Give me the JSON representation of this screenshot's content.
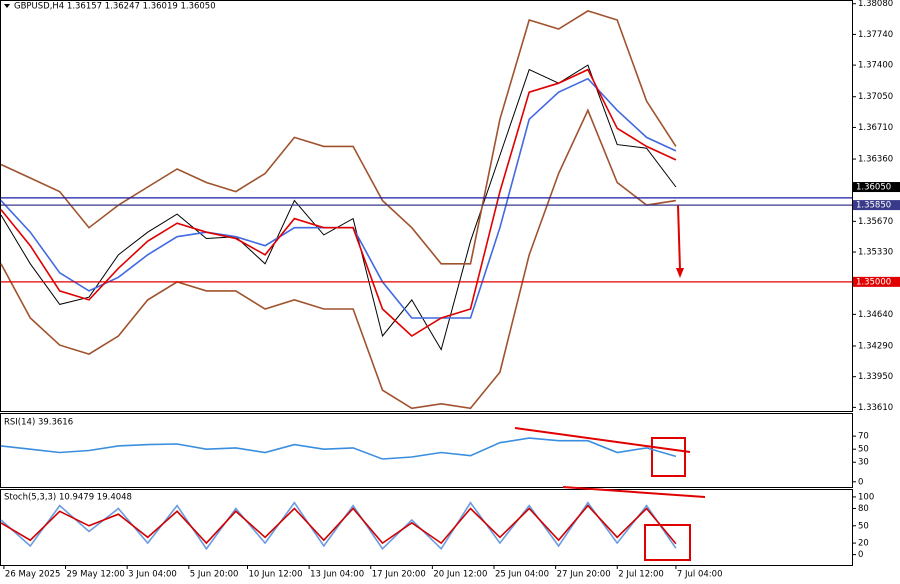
{
  "chart_data": [
    {
      "type": "line",
      "title": "GBPUSD,H4  1.36157 1.36247 1.36019 1.36050",
      "x": [
        0,
        1,
        2,
        3,
        4,
        5,
        6,
        7,
        8,
        9,
        10,
        11,
        12,
        13,
        14,
        15,
        16,
        17,
        18,
        19,
        20,
        21,
        22,
        23
      ],
      "xlim": [
        0,
        29
      ],
      "ylim": [
        1.3357,
        1.3811
      ],
      "yticks": [
        {
          "value": 1.3808,
          "label": "1.38080"
        },
        {
          "value": 1.3774,
          "label": "1.37740"
        },
        {
          "value": 1.374,
          "label": "1.37400"
        },
        {
          "value": 1.3705,
          "label": "1.37050"
        },
        {
          "value": 1.3671,
          "label": "1.36710"
        },
        {
          "value": 1.3636,
          "label": "1.36360"
        },
        {
          "value": 1.3567,
          "label": "1.35670"
        },
        {
          "value": 1.3533,
          "label": "1.35330"
        },
        {
          "value": 1.3464,
          "label": "1.34640"
        },
        {
          "value": 1.3429,
          "label": "1.34290"
        },
        {
          "value": 1.3395,
          "label": "1.33950"
        },
        {
          "value": 1.3361,
          "label": "1.33610"
        }
      ],
      "series": [
        {
          "color": "#000000",
          "values": [
            1.3574,
            1.352,
            1.3475,
            1.3483,
            1.353,
            1.3555,
            1.3575,
            1.3548,
            1.355,
            1.352,
            1.359,
            1.3552,
            1.357,
            1.344,
            1.348,
            1.3425,
            1.3545,
            1.364,
            1.3735,
            1.372,
            1.374,
            1.3652,
            1.3648,
            1.3605
          ]
        },
        {
          "color": "#a0522d",
          "values": [
            1.363,
            1.3615,
            1.36,
            1.356,
            1.3585,
            1.3605,
            1.3625,
            1.361,
            1.36,
            1.362,
            1.366,
            1.365,
            1.365,
            1.359,
            1.356,
            1.352,
            1.352,
            1.368,
            1.379,
            1.378,
            1.38,
            1.379,
            1.37,
            1.365
          ]
        },
        {
          "color": "#a0522d",
          "values": [
            1.352,
            1.346,
            1.343,
            1.342,
            1.344,
            1.348,
            1.35,
            1.349,
            1.349,
            1.347,
            1.348,
            1.347,
            1.347,
            1.338,
            1.336,
            1.3365,
            1.336,
            1.34,
            1.353,
            1.362,
            1.369,
            1.361,
            1.3585,
            1.359
          ]
        },
        {
          "color": "#4169e1",
          "values": [
            1.359,
            1.3555,
            1.351,
            1.349,
            1.3505,
            1.353,
            1.355,
            1.3555,
            1.355,
            1.354,
            1.356,
            1.356,
            1.356,
            1.35,
            1.346,
            1.346,
            1.346,
            1.356,
            1.368,
            1.371,
            1.3725,
            1.369,
            1.366,
            1.3645
          ]
        },
        {
          "color": "#e00000",
          "values": [
            1.358,
            1.354,
            1.349,
            1.348,
            1.3515,
            1.3545,
            1.3565,
            1.3555,
            1.3548,
            1.353,
            1.357,
            1.356,
            1.356,
            1.347,
            1.344,
            1.346,
            1.347,
            1.36,
            1.371,
            1.372,
            1.3735,
            1.367,
            1.365,
            1.3635
          ]
        }
      ],
      "hlines": [
        {
          "value": 1.3593,
          "color": "#1a1aa6"
        },
        {
          "value": 1.3585,
          "color": "#3a3a8a",
          "label": "1.35850"
        },
        {
          "value": 1.35,
          "color": "#e00000",
          "label": "1.35000"
        }
      ],
      "price_label": {
        "value": 1.3605,
        "label": "1.36050"
      }
    },
    {
      "type": "line",
      "title": "RSI(14) 39.3616",
      "x": [
        0,
        1,
        2,
        3,
        4,
        5,
        6,
        7,
        8,
        9,
        10,
        11,
        12,
        13,
        14,
        15,
        16,
        17,
        18,
        19,
        20,
        21,
        22,
        23
      ],
      "xlim": [
        0,
        29
      ],
      "ylim": [
        -8,
        104
      ],
      "yticks": [
        70,
        50,
        30,
        0
      ],
      "series": [
        {
          "color": "#3a8ee0",
          "values": [
            55,
            50,
            45,
            48,
            55,
            57,
            58,
            50,
            52,
            45,
            57,
            50,
            52,
            35,
            38,
            45,
            40,
            60,
            67,
            63,
            63,
            45,
            52,
            39
          ]
        }
      ]
    },
    {
      "type": "line",
      "title": "Stoch(5,3,3) 10.9479 19.4048",
      "x": [
        0,
        1,
        2,
        3,
        4,
        5,
        6,
        7,
        8,
        9,
        10,
        11,
        12,
        13,
        14,
        15,
        16,
        17,
        18,
        19,
        20,
        21,
        22,
        23
      ],
      "xlim": [
        0,
        29
      ],
      "ylim": [
        -18,
        112
      ],
      "yticks": [
        100,
        80,
        50,
        20,
        0
      ],
      "xticks": [
        {
          "value": 0.1,
          "label": "26 May 2025"
        },
        {
          "value": 2.2,
          "label": "29 May 12:00"
        },
        {
          "value": 4.3,
          "label": "3 Jun 04:00"
        },
        {
          "value": 6.4,
          "label": "5 Jun 20:00"
        },
        {
          "value": 8.4,
          "label": "10 Jun 12:00"
        },
        {
          "value": 10.5,
          "label": "13 Jun 04:00"
        },
        {
          "value": 12.6,
          "label": "17 Jun 20:00"
        },
        {
          "value": 14.7,
          "label": "20 Jun 12:00"
        },
        {
          "value": 16.8,
          "label": "25 Jun 04:00"
        },
        {
          "value": 18.9,
          "label": "27 Jun 20:00"
        },
        {
          "value": 21.0,
          "label": "2 Jul 12:00"
        },
        {
          "value": 23.0,
          "label": "7 Jul 04:00"
        }
      ],
      "series": [
        {
          "color": "#6a9be0",
          "values": [
            60,
            15,
            85,
            40,
            80,
            20,
            85,
            10,
            80,
            20,
            90,
            15,
            85,
            10,
            60,
            10,
            90,
            20,
            85,
            15,
            90,
            20,
            85,
            11
          ]
        },
        {
          "color": "#d00000",
          "values": [
            55,
            25,
            75,
            50,
            70,
            30,
            75,
            20,
            75,
            30,
            80,
            25,
            80,
            20,
            55,
            20,
            80,
            30,
            80,
            25,
            85,
            30,
            80,
            19
          ]
        }
      ]
    }
  ]
}
